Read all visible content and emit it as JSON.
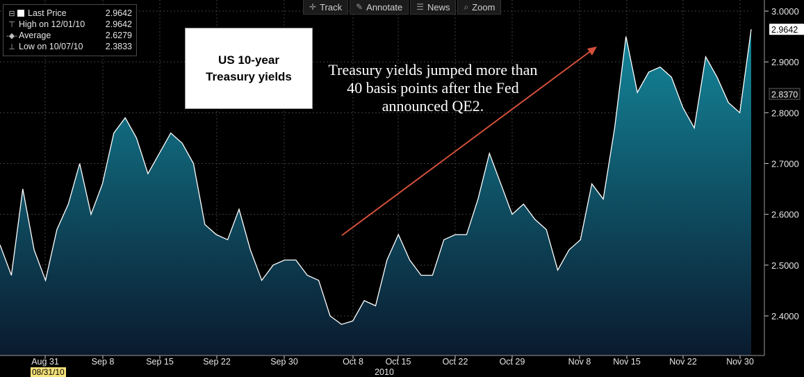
{
  "toolbar": {
    "track": "Track",
    "annotate": "Annotate",
    "news": "News",
    "zoom": "Zoom"
  },
  "legend": {
    "last_price_label": "Last Price",
    "last_price_value": "2.9642",
    "high_label": "High on 12/01/10",
    "high_value": "2.9642",
    "average_label": "Average",
    "average_value": "2.6279",
    "low_label": "Low on 10/07/10",
    "low_value": "2.3833"
  },
  "title_box": {
    "line1": "US 10-year",
    "line2": "Treasury yields"
  },
  "annotation": "Treasury yields jumped more than 40 basis points after the Fed announced QE2.",
  "start_date": "08/31/10",
  "year_label": "2010",
  "colors": {
    "background": "#000000",
    "line": "#ffffff",
    "fill_top": "#14889c",
    "fill_bottom": "#0a1a2e",
    "arrow": "#d4503a",
    "grid": "#404040"
  },
  "chart_data": {
    "type": "area",
    "title": "US 10-year Treasury yields",
    "xlabel": "2010",
    "ylabel": "",
    "ylim": [
      2.34,
      3.04
    ],
    "grid": true,
    "y_ticks": [
      "2.4000",
      "2.5000",
      "2.6000",
      "2.7000",
      "2.8000",
      "2.9000",
      "3.0000"
    ],
    "x_ticks": [
      "Aug 31",
      "Sep 8",
      "Sep 15",
      "Sep 22",
      "Sep 30",
      "Oct 8",
      "Oct 15",
      "Oct 22",
      "Oct 29",
      "Nov 8",
      "Nov 15",
      "Nov 22",
      "Nov 30"
    ],
    "price_tags": [
      "2.9642",
      "2.8370"
    ],
    "series": [
      {
        "values": [
          2.54,
          2.48,
          2.65,
          2.53,
          2.47,
          2.57,
          2.62,
          2.7,
          2.6,
          2.66,
          2.76,
          2.79,
          2.75,
          2.68,
          2.72,
          2.76,
          2.74,
          2.7,
          2.58,
          2.56,
          2.55,
          2.61,
          2.53,
          2.47,
          2.5,
          2.51,
          2.51,
          2.48,
          2.47,
          2.4,
          2.3833,
          2.39,
          2.43,
          2.42,
          2.51,
          2.56,
          2.51,
          2.48,
          2.48,
          2.55,
          2.56,
          2.56,
          2.63,
          2.72,
          2.66,
          2.6,
          2.62,
          2.59,
          2.57,
          2.49,
          2.53,
          2.55,
          2.66,
          2.63,
          2.77,
          2.95,
          2.84,
          2.88,
          2.89,
          2.87,
          2.81,
          2.77,
          2.91,
          2.87,
          2.82,
          2.8,
          2.9642
        ]
      }
    ]
  }
}
